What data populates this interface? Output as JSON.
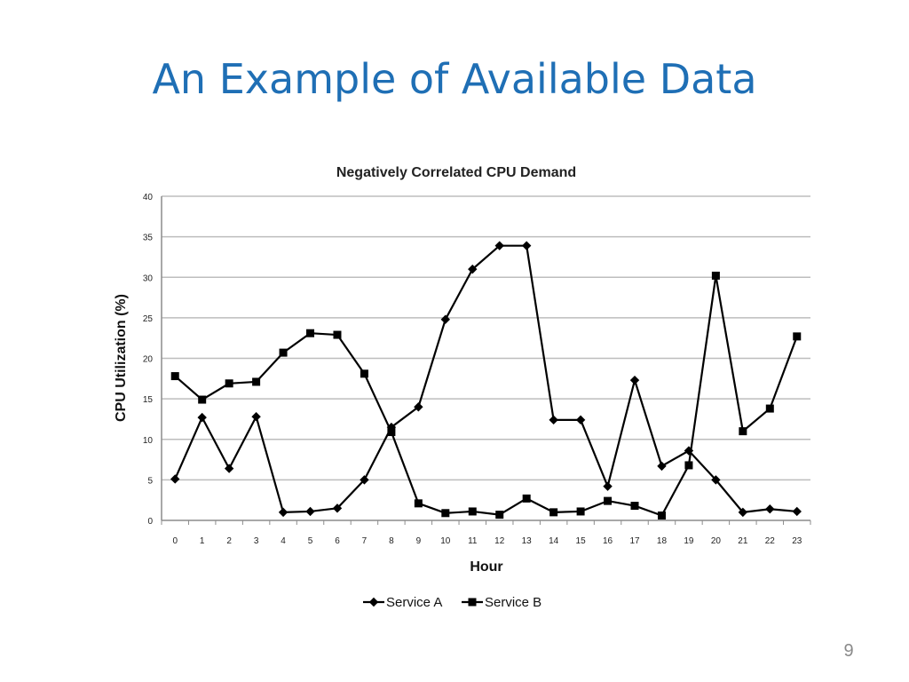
{
  "slide": {
    "title": "An Example of Available Data",
    "page_number": "9"
  },
  "chart_data": {
    "type": "line",
    "title": "Negatively Correlated CPU Demand",
    "xlabel": "Hour",
    "ylabel": "CPU  Utilization  (%)",
    "x": [
      0,
      1,
      2,
      3,
      4,
      5,
      6,
      7,
      8,
      9,
      10,
      11,
      12,
      13,
      14,
      15,
      16,
      17,
      18,
      19,
      20,
      21,
      22,
      23
    ],
    "ylim": [
      0,
      40
    ],
    "yticks": [
      0,
      5,
      10,
      15,
      20,
      25,
      30,
      35,
      40
    ],
    "grid": true,
    "legend_position": "bottom",
    "series": [
      {
        "name": "Service A",
        "marker": "diamond",
        "color": "#000000",
        "values": [
          5.1,
          12.7,
          6.4,
          12.8,
          1.0,
          1.1,
          1.5,
          5.0,
          11.5,
          14.0,
          24.8,
          31.0,
          33.9,
          33.9,
          12.4,
          12.4,
          4.2,
          17.3,
          6.7,
          8.6,
          5.0,
          1.0,
          1.4,
          1.1
        ]
      },
      {
        "name": "Service B",
        "marker": "square",
        "color": "#000000",
        "values": [
          17.8,
          14.9,
          16.9,
          17.1,
          20.7,
          23.1,
          22.9,
          18.1,
          10.9,
          2.1,
          0.9,
          1.1,
          0.7,
          2.7,
          1.0,
          1.1,
          2.4,
          1.8,
          0.6,
          6.8,
          30.2,
          11.0,
          13.8,
          22.7
        ]
      }
    ]
  }
}
